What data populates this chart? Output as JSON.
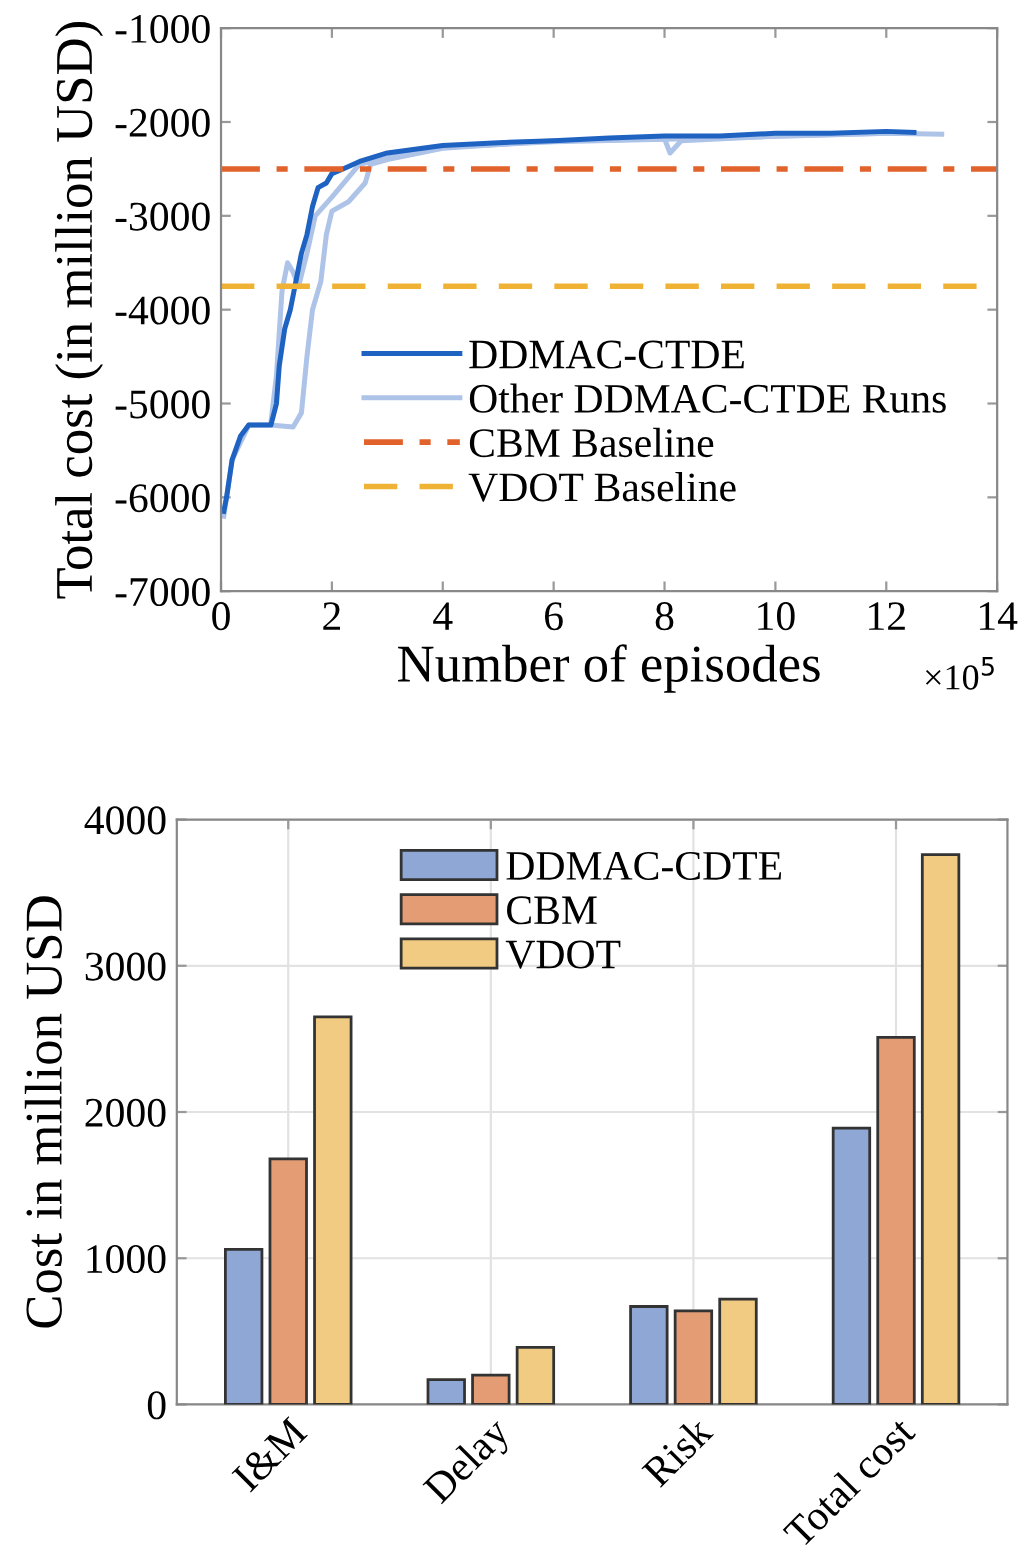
{
  "chart_data": [
    {
      "type": "line",
      "xlabel": "Number of episodes",
      "ylabel": "Total cost (in million USD)",
      "annotations": [
        "×10$^{5}$"
      ],
      "xlim": [
        0,
        14
      ],
      "ylim": [
        -7000,
        -1000
      ],
      "xticks": [
        0,
        2,
        4,
        6,
        8,
        10,
        12,
        14
      ],
      "yticks": [
        -7000,
        -6000,
        -5000,
        -4000,
        -3000,
        -2000,
        -1000
      ],
      "grid": false,
      "legend": "bottom",
      "marker": "none",
      "line_style": "solid",
      "series": [
        {
          "name": "Other DDMAC-CTDE Runs",
          "color": "#aec3e8",
          "x": [
            0.05,
            0.2,
            0.5,
            0.9,
            1.3,
            1.45,
            1.55,
            1.65,
            1.8,
            1.9,
            2.0,
            2.3,
            2.6,
            2.7,
            3.0,
            4.0,
            6.0,
            8.0,
            8.1,
            8.3,
            10.0,
            12.0,
            13.0
          ],
          "values": [
            -6200,
            -5600,
            -5230,
            -5230,
            -5250,
            -5100,
            -4500,
            -4000,
            -3700,
            -3200,
            -2950,
            -2850,
            -2650,
            -2450,
            -2400,
            -2280,
            -2200,
            -2180,
            -2330,
            -2200,
            -2150,
            -2120,
            -2130
          ]
        },
        {
          "color": "#aec3e8",
          "x": [
            0.9,
            1.0,
            1.1,
            1.2,
            1.3,
            1.4,
            1.55,
            1.7,
            2.0,
            2.5,
            3.0,
            4.0,
            6.0,
            9.0,
            12.0
          ],
          "values": [
            -5200,
            -4700,
            -3800,
            -3500,
            -3600,
            -3750,
            -3400,
            -3000,
            -2800,
            -2450,
            -2380,
            -2270,
            -2210,
            -2170,
            -2120
          ]
        },
        {
          "name": "DDMAC-CTDE",
          "color": "#1f63c2",
          "x": [
            0.05,
            0.1,
            0.2,
            0.35,
            0.5,
            0.9,
            1.0,
            1.05,
            1.15,
            1.25,
            1.35,
            1.45,
            1.55,
            1.65,
            1.75,
            1.9,
            2.0,
            2.2,
            2.5,
            3.0,
            4.0,
            5.0,
            6.0,
            7.0,
            8.0,
            9.0,
            10.0,
            11.0,
            12.0,
            12.5
          ],
          "values": [
            -6150,
            -6000,
            -5600,
            -5350,
            -5230,
            -5230,
            -5000,
            -4600,
            -4200,
            -4000,
            -3700,
            -3400,
            -3200,
            -2900,
            -2700,
            -2650,
            -2550,
            -2500,
            -2420,
            -2330,
            -2250,
            -2220,
            -2200,
            -2170,
            -2150,
            -2150,
            -2120,
            -2120,
            -2100,
            -2110
          ]
        }
      ],
      "ref_lines": [
        {
          "axis": "y",
          "value": -2500,
          "label": "CBM Baseline",
          "color": "#e2622b",
          "line_style": "dashdot"
        },
        {
          "axis": "y",
          "value": -3750,
          "label": "VDOT Baseline",
          "color": "#f0b234",
          "line_style": "dashed"
        }
      ]
    },
    {
      "type": "bar",
      "ylabel": "Cost in million USD",
      "categories": [
        "I&M",
        "Delay",
        "Risk",
        "Total cost"
      ],
      "ylim": [
        0,
        4000
      ],
      "yticks": [
        0,
        1000,
        2000,
        3000,
        4000
      ],
      "grid": true,
      "legend": "top",
      "series": [
        {
          "name": "DDMAC-CDTE",
          "color": "#8ea7d4",
          "values": [
            1060,
            170,
            670,
            1890
          ]
        },
        {
          "name": "CBM",
          "color": "#e39c73",
          "values": [
            1680,
            200,
            640,
            2510
          ]
        },
        {
          "name": "VDOT",
          "color": "#f1cb81",
          "values": [
            2650,
            390,
            720,
            3760
          ]
        }
      ]
    }
  ]
}
